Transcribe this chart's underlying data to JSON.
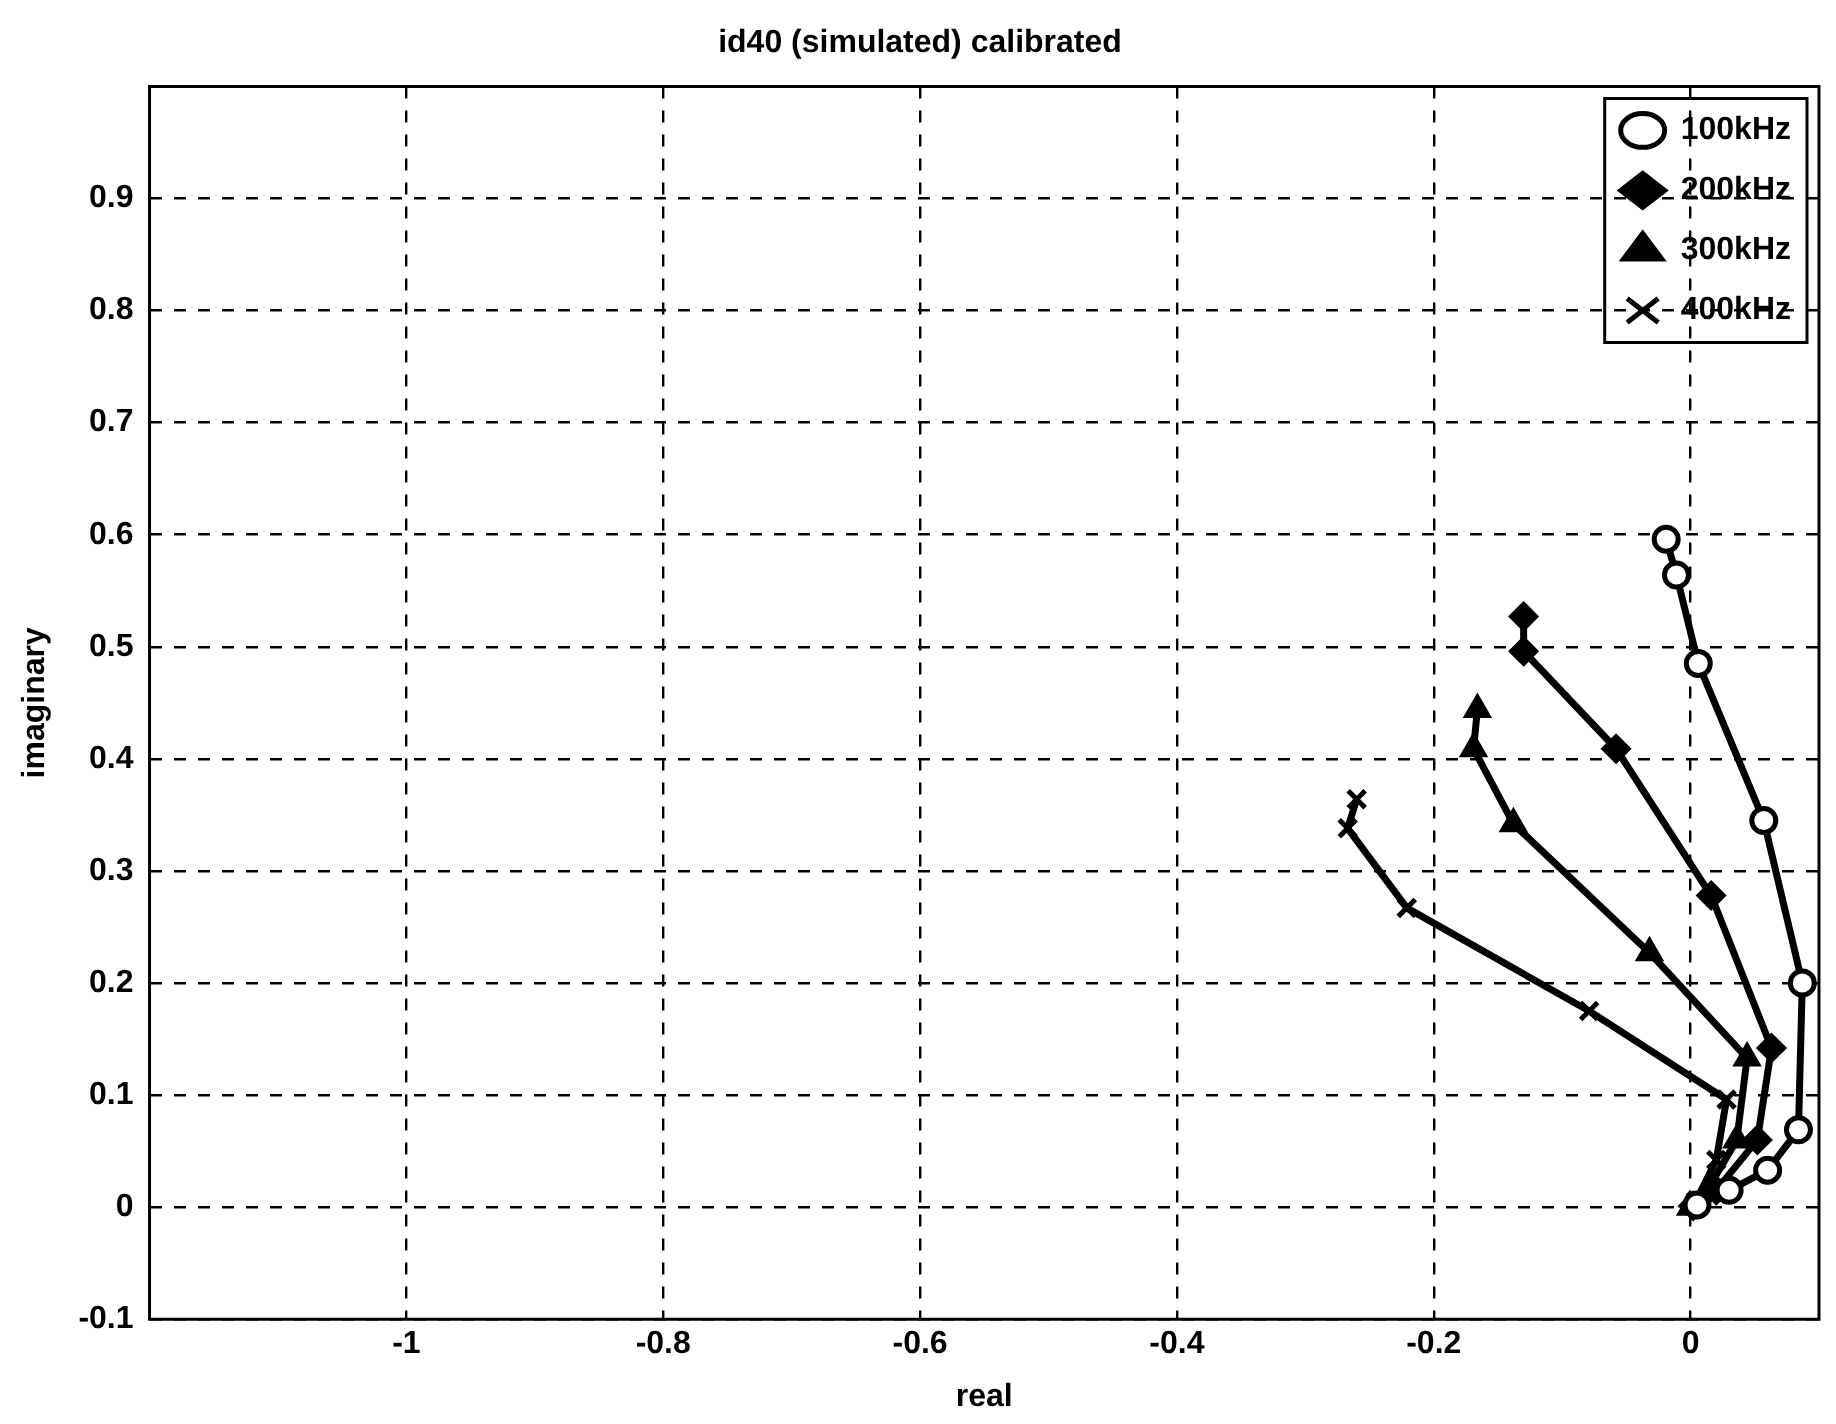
{
  "chart_data": {
    "type": "line",
    "title": "id40 (simulated) calibrated",
    "xlabel": "real",
    "ylabel": "imaginary",
    "xlim": [
      -1.2,
      0.1
    ],
    "ylim": [
      -0.1,
      1.0
    ],
    "xticks": [
      -1,
      -0.8,
      -0.6,
      -0.4,
      -0.2,
      0
    ],
    "yticks": [
      -0.1,
      0,
      0.1,
      0.2,
      0.3,
      0.4,
      0.5,
      0.6,
      0.7,
      0.8,
      0.9
    ],
    "grid": true,
    "legend": "top right",
    "line_style": "solid",
    "series": [
      {
        "name": "100kHz",
        "color": "#000000",
        "marker": "circle",
        "x": [
          -0.019,
          -0.011,
          0.006,
          0.057,
          0.087,
          0.084,
          0.06,
          0.03,
          0.005
        ],
        "values": [
          0.596,
          0.564,
          0.485,
          0.345,
          0.2,
          0.069,
          0.033,
          0.015,
          0.002
        ]
      },
      {
        "name": "200kHz",
        "color": "#000000",
        "marker": "diamond",
        "x": [
          -0.13,
          -0.13,
          -0.058,
          0.016,
          0.063,
          0.052,
          0.02,
          0.002
        ],
        "values": [
          0.527,
          0.496,
          0.409,
          0.278,
          0.142,
          0.06,
          0.015,
          0.001
        ]
      },
      {
        "name": "300kHz",
        "color": "#000000",
        "marker": "triangle",
        "x": [
          -0.166,
          -0.169,
          -0.138,
          -0.032,
          0.044,
          0.036,
          0.013,
          0.0
        ],
        "values": [
          0.444,
          0.409,
          0.342,
          0.227,
          0.133,
          0.06,
          0.015,
          0.0
        ]
      },
      {
        "name": "400kHz",
        "color": "#000000",
        "marker": "cross",
        "x": [
          -0.26,
          -0.267,
          -0.221,
          -0.079,
          0.028,
          0.02,
          0.004
        ],
        "values": [
          0.364,
          0.338,
          0.267,
          0.175,
          0.096,
          0.042,
          0.005
        ]
      }
    ]
  }
}
